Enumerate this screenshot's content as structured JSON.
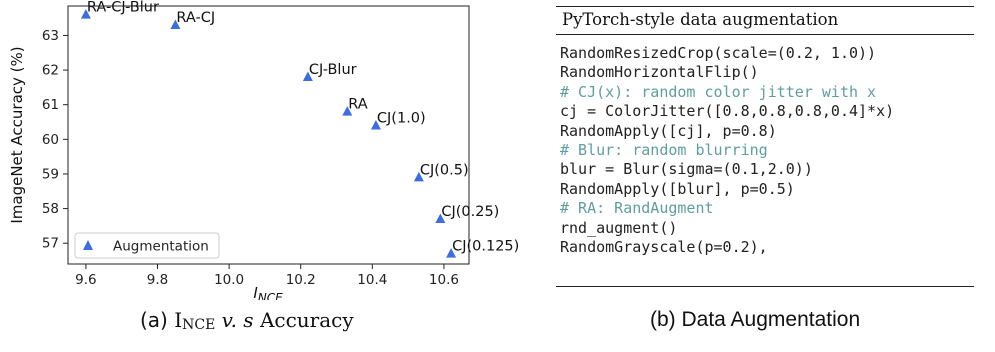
{
  "chart_data": {
    "type": "scatter",
    "xlabel_main": "I",
    "xlabel_sub": "NCE",
    "ylabel": "ImageNet Accuracy (%)",
    "xlim": [
      9.55,
      10.67
    ],
    "ylim": [
      56.4,
      63.85
    ],
    "xticks": [
      9.6,
      9.8,
      10.0,
      10.2,
      10.4,
      10.6
    ],
    "yticks": [
      57,
      58,
      59,
      60,
      61,
      62,
      63
    ],
    "xtick_labels": [
      "9.6",
      "9.8",
      "10.0",
      "10.2",
      "10.4",
      "10.6"
    ],
    "ytick_labels": [
      "57",
      "58",
      "59",
      "60",
      "61",
      "62",
      "63"
    ],
    "grid": false,
    "legend": {
      "placement": "lower-left",
      "entries": [
        "Augmentation"
      ]
    },
    "marker_color": "#3b6ee0",
    "points": [
      {
        "label": "RA-CJ-Blur",
        "x": 9.6,
        "y": 63.6
      },
      {
        "label": "RA-CJ",
        "x": 9.85,
        "y": 63.3
      },
      {
        "label": "CJ-Blur",
        "x": 10.22,
        "y": 61.8
      },
      {
        "label": "RA",
        "x": 10.33,
        "y": 60.8
      },
      {
        "label": "CJ(1.0)",
        "x": 10.41,
        "y": 60.4
      },
      {
        "label": "CJ(0.5)",
        "x": 10.53,
        "y": 58.9
      },
      {
        "label": "CJ(0.25)",
        "x": 10.59,
        "y": 57.7
      },
      {
        "label": "CJ(0.125)",
        "x": 10.62,
        "y": 56.7
      }
    ]
  },
  "caption_a": {
    "prefix": "(a) ",
    "i": "I",
    "sub": "NCE",
    "vs": " v. s ",
    "rest": "Accuracy"
  },
  "caption_b": "(b) Data Augmentation",
  "code_panel": {
    "title": "PyTorch-style data augmentation",
    "lines": [
      {
        "text": "RandomResizedCrop(scale=(0.2, 1.0))",
        "comment": false
      },
      {
        "text": "RandomHorizontalFlip()",
        "comment": false
      },
      {
        "text": "# CJ(x): random color jitter with x",
        "comment": true
      },
      {
        "text": "cj = ColorJitter([0.8,0.8,0.8,0.4]*x)",
        "comment": false
      },
      {
        "text": "RandomApply([cj], p=0.8)",
        "comment": false
      },
      {
        "text": "# Blur: random blurring",
        "comment": true
      },
      {
        "text": "blur = Blur(sigma=(0.1,2.0))",
        "comment": false
      },
      {
        "text": "RandomApply([blur], p=0.5)",
        "comment": false
      },
      {
        "text": "# RA: RandAugment",
        "comment": true
      },
      {
        "text": "rnd_augment()",
        "comment": false
      },
      {
        "text": "RandomGrayscale(p=0.2),",
        "comment": false
      }
    ]
  }
}
